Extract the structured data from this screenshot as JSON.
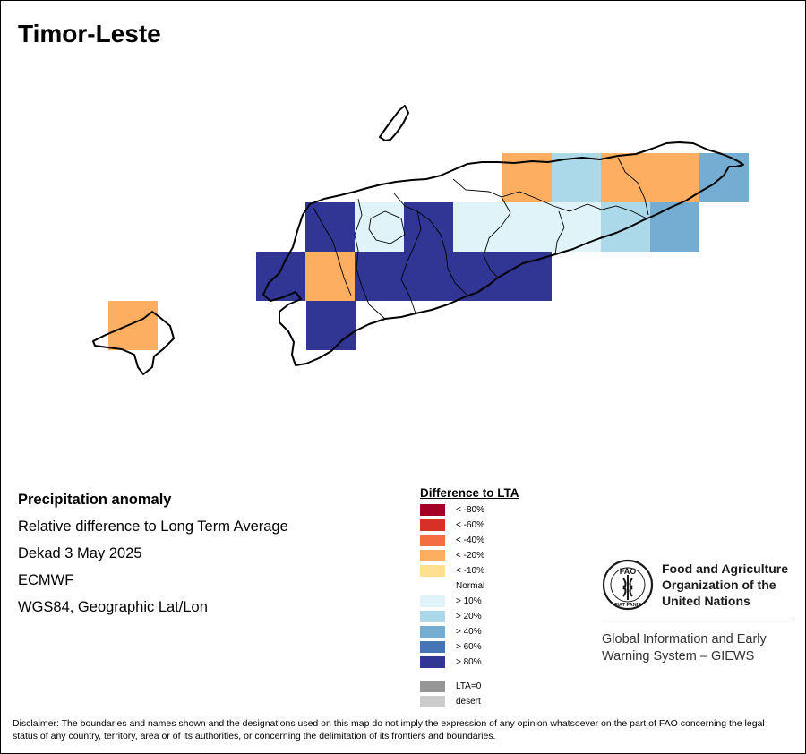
{
  "title": "Timor-Leste",
  "info": {
    "heading": "Precipitation anomaly",
    "line1": "Relative difference to Long Term Average",
    "line2": "Dekad 3 May 2025",
    "line3": "ECMWF",
    "line4": "WGS84, Geographic Lat/Lon"
  },
  "legend": {
    "title": "Difference to LTA",
    "items": [
      {
        "label": "< -80%",
        "color": "#a50026"
      },
      {
        "label": "< -60%",
        "color": "#d73027"
      },
      {
        "label": "< -40%",
        "color": "#f46d43"
      },
      {
        "label": "< -20%",
        "color": "#fdae61"
      },
      {
        "label": "< -10%",
        "color": "#fee090"
      },
      {
        "label": "Normal",
        "color": "#ffffff"
      },
      {
        "label": "> 10%",
        "color": "#e0f3f8"
      },
      {
        "label": "> 20%",
        "color": "#abd9e9"
      },
      {
        "label": "> 40%",
        "color": "#74add1"
      },
      {
        "label": "> 60%",
        "color": "#4575b4"
      },
      {
        "label": "> 80%",
        "color": "#313695"
      },
      {
        "label": "LTA=0",
        "color": "#969696"
      },
      {
        "label": "desert",
        "color": "#cccccc"
      }
    ]
  },
  "map_grid": [
    {
      "col": 8,
      "row": 0,
      "class": "< -20%"
    },
    {
      "col": 9,
      "row": 0,
      "class": "> 20%"
    },
    {
      "col": 10,
      "row": 0,
      "class": "< -20%"
    },
    {
      "col": 11,
      "row": 0,
      "class": "< -20%"
    },
    {
      "col": 12,
      "row": 0,
      "class": "> 40%"
    },
    {
      "col": 4,
      "row": 1,
      "class": "> 80%"
    },
    {
      "col": 5,
      "row": 1,
      "class": "> 10%"
    },
    {
      "col": 6,
      "row": 1,
      "class": "> 80%"
    },
    {
      "col": 7,
      "row": 1,
      "class": "> 10%"
    },
    {
      "col": 8,
      "row": 1,
      "class": "> 10%"
    },
    {
      "col": 9,
      "row": 1,
      "class": "> 10%"
    },
    {
      "col": 10,
      "row": 1,
      "class": "> 20%"
    },
    {
      "col": 11,
      "row": 1,
      "class": "> 40%"
    },
    {
      "col": 3,
      "row": 2,
      "class": "> 80%"
    },
    {
      "col": 4,
      "row": 2,
      "class": "< -20%"
    },
    {
      "col": 5,
      "row": 2,
      "class": "> 80%"
    },
    {
      "col": 6,
      "row": 2,
      "class": "> 80%"
    },
    {
      "col": 7,
      "row": 2,
      "class": "> 80%"
    },
    {
      "col": 8,
      "row": 2,
      "class": "> 80%"
    },
    {
      "col": 4,
      "row": 3,
      "class": "> 80%"
    },
    {
      "col": 0,
      "row": 3,
      "class": "< -20%"
    }
  ],
  "fao": {
    "logo_text": "FAO",
    "motto": "FIAT PANIS",
    "name_line1": "Food and Agriculture",
    "name_line2": "Organization of the",
    "name_line3": "United Nations",
    "giews_line1": "Global Information and Early",
    "giews_line2": "Warning System – GIEWS"
  },
  "disclaimer": "Disclaimer: The boundaries and names shown and the designations used on this map do not imply the expression of any opinion whatsoever on the part of FAO concerning the legal status of any country, territory, area or of its authorities, or concerning the delimitation of its frontiers and boundaries."
}
